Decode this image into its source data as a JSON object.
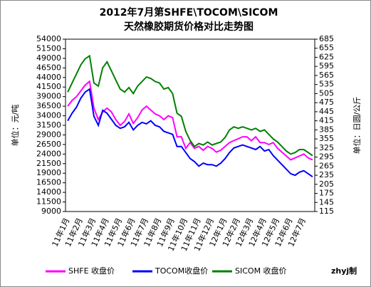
{
  "chart_data": {
    "type": "line",
    "title": "2012年7月第SHFE\\TOCOM\\SICOM",
    "subtitle": "天然橡胶期货价格对比走势图",
    "ylabel": "单位：元/吨",
    "y2label": "单位：日圆/公斤",
    "credit": "zhyj制",
    "categories": [
      "11年1月",
      null,
      null,
      "11年2月",
      null,
      null,
      "11年3月",
      null,
      null,
      "11年4月",
      null,
      null,
      "11年5月",
      null,
      null,
      "11年6月",
      null,
      null,
      "11年7月",
      null,
      null,
      "11年8月",
      null,
      null,
      "11年9月",
      null,
      null,
      "11年10月",
      null,
      null,
      "11年11月",
      null,
      null,
      "11年12月",
      null,
      null,
      "12年1月",
      null,
      null,
      "12年2月",
      null,
      null,
      "12年3月",
      null,
      null,
      "12年4月",
      null,
      null,
      "12年5月",
      null,
      null,
      "12年6月",
      null,
      null,
      "12年7月",
      null,
      null
    ],
    "series": [
      {
        "name": "SHFE 收盘价",
        "color": "#ff00ff",
        "values": [
          36500,
          38000,
          39000,
          40500,
          42000,
          43000,
          36000,
          33000,
          35000,
          36000,
          35000,
          33000,
          31500,
          32500,
          34500,
          32000,
          33500,
          35500,
          36500,
          35500,
          34500,
          34000,
          33000,
          34000,
          33500,
          28500,
          28500,
          25500,
          27000,
          25500,
          26000,
          25000,
          26000,
          25500,
          24500,
          25000,
          26000,
          27000,
          27500,
          28000,
          28500,
          28500,
          27500,
          28500,
          27000,
          27000,
          26500,
          27000,
          25500,
          24500,
          23500,
          22500,
          23000,
          23500,
          24000,
          23000,
          22500
        ]
      },
      {
        "name": "TOCOM收盘价",
        "color": "#0000ff",
        "axis": "y2",
        "values": [
          415,
          440,
          460,
          490,
          510,
          520,
          430,
          400,
          450,
          440,
          420,
          400,
          390,
          395,
          410,
          385,
          400,
          410,
          405,
          415,
          400,
          395,
          380,
          375,
          370,
          330,
          330,
          310,
          290,
          280,
          265,
          275,
          270,
          270,
          265,
          275,
          290,
          310,
          325,
          330,
          335,
          330,
          325,
          320,
          330,
          315,
          320,
          300,
          285,
          270,
          255,
          240,
          235,
          245,
          250,
          240,
          230
        ]
      },
      {
        "name": "SICOM 收盘价",
        "color": "#008000",
        "axis": "y2",
        "values": [
          510,
          540,
          570,
          600,
          620,
          630,
          540,
          530,
          590,
          610,
          580,
          550,
          520,
          510,
          525,
          505,
          530,
          545,
          560,
          555,
          545,
          540,
          520,
          525,
          505,
          440,
          430,
          380,
          350,
          330,
          340,
          335,
          345,
          335,
          340,
          345,
          360,
          385,
          395,
          390,
          395,
          390,
          385,
          390,
          380,
          385,
          370,
          355,
          345,
          330,
          315,
          305,
          310,
          320,
          320,
          310,
          300
        ]
      }
    ],
    "ylim": [
      9000,
      54000
    ],
    "yticks": [
      9000,
      11500,
      14000,
      16500,
      19000,
      21500,
      24000,
      26500,
      29000,
      31500,
      34000,
      36500,
      39000,
      41500,
      44000,
      46500,
      49000,
      51500,
      54000
    ],
    "y2lim": [
      115,
      685
    ],
    "y2ticks": [
      115,
      145,
      175,
      205,
      235,
      265,
      295,
      325,
      355,
      385,
      415,
      445,
      475,
      505,
      535,
      565,
      595,
      625,
      655,
      685
    ],
    "grid": false,
    "legend": "bottom"
  }
}
